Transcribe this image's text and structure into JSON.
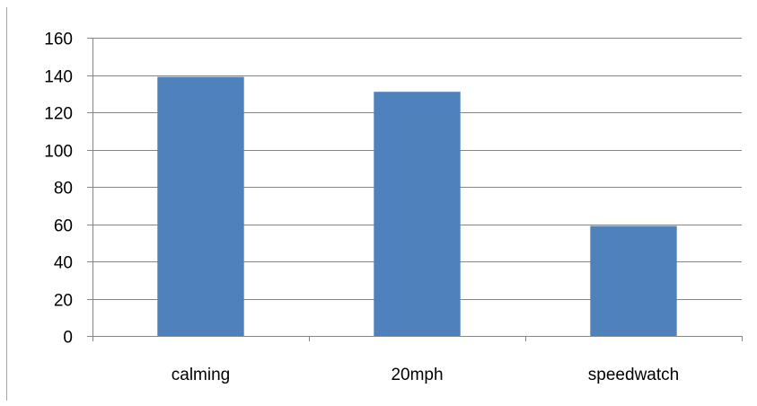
{
  "chart_data": {
    "type": "bar",
    "categories": [
      "calming",
      "20mph",
      "speedwatch"
    ],
    "series": [
      {
        "values": [
          139,
          131,
          59
        ]
      }
    ],
    "title": "",
    "xlabel": "",
    "ylabel": "",
    "ylim": [
      0,
      160
    ],
    "yticks": [
      0,
      20,
      40,
      60,
      80,
      100,
      120,
      140,
      160
    ],
    "grid": "horizontal",
    "legend": "none",
    "bar_color": "#4F81BD",
    "grid_color": "#868686",
    "axis_color": "#868686",
    "frame_line_color": "#A6A6A6"
  }
}
